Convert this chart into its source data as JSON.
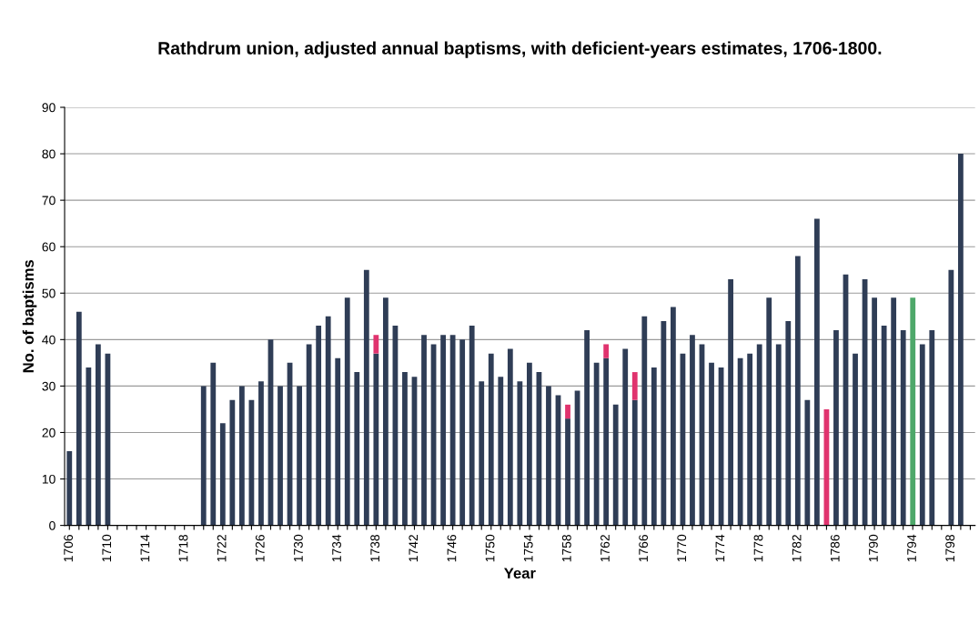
{
  "chart_data": {
    "type": "bar",
    "stacked": true,
    "title": "Rathdrum union, adjusted annual baptisms, with deficient-years estimates, 1706-1800.",
    "xlabel": "Year",
    "ylabel": "No. of baptisms",
    "categories": [
      "1706",
      null,
      null,
      null,
      "1710",
      null,
      null,
      null,
      "1714",
      null,
      null,
      null,
      "1718",
      null,
      null,
      null,
      "1722",
      null,
      null,
      null,
      "1726",
      null,
      null,
      null,
      "1730",
      null,
      null,
      null,
      "1734",
      null,
      null,
      null,
      "1738",
      null,
      null,
      null,
      "1742",
      null,
      null,
      null,
      "1746",
      null,
      null,
      null,
      "1750",
      null,
      null,
      null,
      "1754",
      null,
      null,
      null,
      "1758",
      null,
      null,
      null,
      "1762",
      null,
      null,
      null,
      "1766",
      null,
      null,
      null,
      "1770",
      null,
      null,
      null,
      "1774",
      null,
      null,
      null,
      "1778",
      null,
      null,
      null,
      "1782",
      null,
      null,
      null,
      "1786",
      null,
      null,
      null,
      "1790",
      null,
      null,
      null,
      "1794",
      null,
      null,
      null,
      "1798",
      null,
      null
    ],
    "series": [
      {
        "color": "#2f3d56",
        "values": [
          16,
          46,
          34,
          39,
          37,
          null,
          null,
          null,
          null,
          null,
          null,
          null,
          null,
          null,
          30,
          35,
          22,
          27,
          30,
          27,
          31,
          40,
          30,
          35,
          30,
          39,
          43,
          45,
          36,
          49,
          33,
          55,
          37,
          49,
          43,
          33,
          32,
          41,
          39,
          41,
          41,
          40,
          43,
          31,
          37,
          32,
          38,
          31,
          35,
          33,
          30,
          28,
          23,
          29,
          42,
          35,
          36,
          26,
          38,
          27,
          45,
          34,
          44,
          47,
          37,
          41,
          39,
          35,
          34,
          53,
          36,
          37,
          39,
          49,
          39,
          44,
          58,
          27,
          66,
          null,
          42,
          54,
          37,
          53,
          49,
          43,
          49,
          42,
          null,
          39,
          42,
          null,
          55,
          80,
          null
        ]
      },
      {
        "colors": [
          null,
          null,
          null,
          null,
          null,
          null,
          null,
          null,
          null,
          null,
          null,
          null,
          null,
          null,
          null,
          null,
          null,
          null,
          null,
          null,
          null,
          null,
          null,
          null,
          null,
          null,
          null,
          null,
          null,
          null,
          null,
          null,
          "#e0336e",
          null,
          null,
          null,
          null,
          null,
          null,
          null,
          null,
          null,
          null,
          null,
          null,
          null,
          null,
          null,
          null,
          null,
          null,
          null,
          "#e0336e",
          null,
          null,
          null,
          "#e0336e",
          null,
          null,
          "#e0336e",
          null,
          null,
          null,
          null,
          null,
          null,
          null,
          null,
          null,
          null,
          null,
          null,
          null,
          null,
          null,
          null,
          null,
          null,
          null,
          "#e0336e",
          null,
          null,
          null,
          null,
          null,
          null,
          null,
          null,
          "#4ea86a",
          null,
          null,
          null,
          null,
          null,
          null
        ],
        "values": [
          null,
          null,
          null,
          null,
          null,
          null,
          null,
          null,
          null,
          null,
          null,
          null,
          null,
          null,
          null,
          null,
          null,
          null,
          null,
          null,
          null,
          null,
          null,
          null,
          null,
          null,
          null,
          null,
          null,
          null,
          null,
          null,
          4,
          null,
          null,
          null,
          null,
          null,
          null,
          null,
          null,
          null,
          null,
          null,
          null,
          null,
          null,
          null,
          null,
          null,
          null,
          null,
          3,
          null,
          null,
          null,
          3,
          null,
          null,
          6,
          null,
          null,
          null,
          null,
          null,
          null,
          null,
          null,
          null,
          null,
          null,
          null,
          null,
          null,
          null,
          null,
          null,
          null,
          null,
          25,
          null,
          null,
          null,
          null,
          null,
          null,
          null,
          null,
          49,
          null,
          null,
          null,
          null,
          null,
          null
        ]
      }
    ],
    "ylim": [
      0,
      90
    ],
    "yticks": [
      0,
      10,
      20,
      30,
      40,
      50,
      60,
      70,
      80,
      90
    ],
    "grid": "y",
    "legend": false
  }
}
